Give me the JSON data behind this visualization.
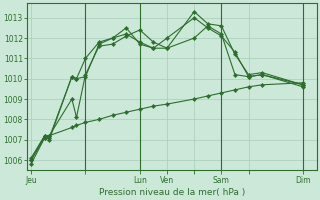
{
  "background_color": "#cce8d8",
  "grid_color": "#aaccbb",
  "line_color": "#2d6e2d",
  "xlabel": "Pression niveau de la mer( hPa )",
  "ylim": [
    1005.5,
    1013.7
  ],
  "yticks": [
    1006,
    1007,
    1008,
    1009,
    1010,
    1011,
    1012,
    1013
  ],
  "xtick_labels": [
    "Jeu",
    "",
    "Lun",
    "Ven",
    "",
    "Sam",
    "",
    "Dim"
  ],
  "xtick_positions": [
    0,
    2,
    4,
    5,
    6,
    7,
    8,
    10
  ],
  "vlines": [
    2,
    4,
    7,
    10
  ],
  "xlim": [
    -0.15,
    10.5
  ],
  "series": [
    {
      "x": [
        0.0,
        0.5,
        0.67,
        1.5,
        1.67,
        2.0,
        2.5,
        3.0,
        3.5,
        4.0,
        4.5,
        5.0,
        6.0,
        6.5,
        7.0,
        7.5,
        8.0,
        8.5,
        10.0
      ],
      "y": [
        1005.8,
        1007.1,
        1007.2,
        1009.0,
        1008.1,
        1010.2,
        1011.6,
        1011.7,
        1012.1,
        1012.4,
        1011.8,
        1011.5,
        1013.3,
        1012.7,
        1012.6,
        1011.2,
        1010.2,
        1010.3,
        1009.7
      ]
    },
    {
      "x": [
        0.0,
        0.5,
        0.67,
        1.5,
        1.67,
        2.0,
        2.5,
        3.0,
        3.5,
        4.0,
        4.5,
        5.0,
        6.0,
        6.5,
        7.0,
        7.5,
        8.0,
        8.5,
        10.0
      ],
      "y": [
        1006.0,
        1007.2,
        1007.0,
        1010.1,
        1010.0,
        1011.0,
        1011.8,
        1012.0,
        1012.5,
        1011.7,
        1011.5,
        1011.5,
        1012.0,
        1012.6,
        1012.2,
        1010.2,
        1010.1,
        1010.2,
        1009.7
      ]
    },
    {
      "x": [
        0.0,
        0.5,
        0.67,
        1.5,
        1.67,
        2.0,
        2.5,
        3.0,
        3.5,
        4.0,
        4.5,
        5.0,
        6.0,
        6.5,
        7.0,
        7.5,
        8.0,
        8.5,
        10.0
      ],
      "y": [
        1006.0,
        1007.1,
        1007.1,
        1010.1,
        1010.0,
        1010.1,
        1011.7,
        1012.0,
        1012.2,
        1011.8,
        1011.5,
        1012.0,
        1013.0,
        1012.5,
        1012.1,
        1011.3,
        1010.1,
        1010.2,
        1009.6
      ]
    },
    {
      "x": [
        0.0,
        0.5,
        0.67,
        1.5,
        1.67,
        2.0,
        2.5,
        3.0,
        3.5,
        4.0,
        4.5,
        5.0,
        6.0,
        6.5,
        7.0,
        7.5,
        8.0,
        8.5,
        10.0
      ],
      "y": [
        1006.1,
        1007.2,
        1007.2,
        1007.6,
        1007.7,
        1007.85,
        1008.0,
        1008.2,
        1008.35,
        1008.5,
        1008.65,
        1008.75,
        1009.0,
        1009.15,
        1009.3,
        1009.45,
        1009.6,
        1009.7,
        1009.8
      ]
    }
  ]
}
